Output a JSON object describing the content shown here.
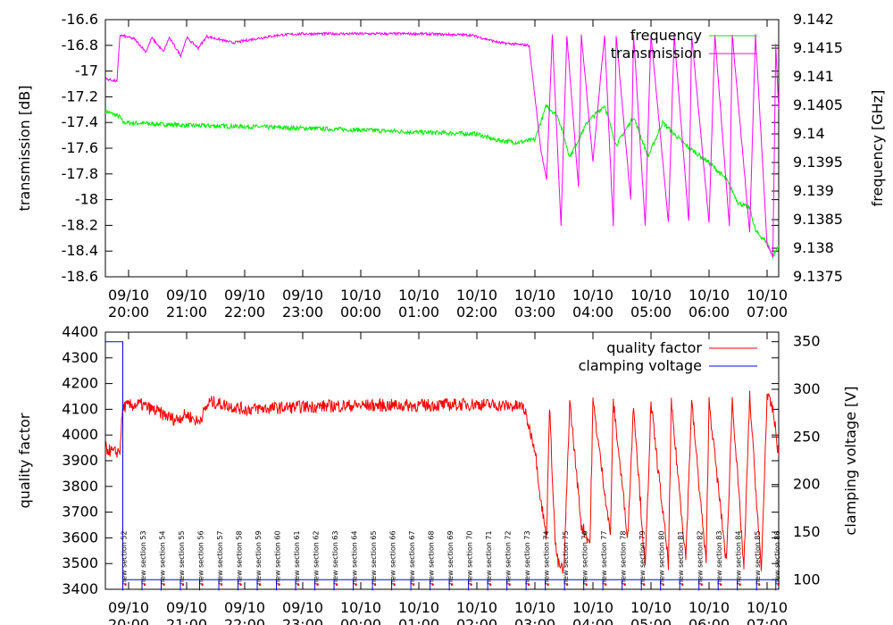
{
  "chart_data": [
    {
      "type": "line",
      "ylabel": "transmission [dB]",
      "y2label": "frequency [GHz]",
      "ylim": [
        -18.6,
        -16.6
      ],
      "y2lim": [
        9.1375,
        9.142
      ],
      "y_ticks": [
        "-16.6",
        "-16.8",
        "-17",
        "-17.2",
        "-17.4",
        "-17.6",
        "-17.8",
        "-18",
        "-18.2",
        "-18.4",
        "-18.6"
      ],
      "y2_ticks": [
        "9.142",
        "9.1415",
        "9.141",
        "9.1405",
        "9.14",
        "9.1395",
        "9.139",
        "9.1385",
        "9.138",
        "9.1375"
      ],
      "x_ticks": [
        {
          "date": "09/10",
          "time": "20:00"
        },
        {
          "date": "09/10",
          "time": "21:00"
        },
        {
          "date": "09/10",
          "time": "22:00"
        },
        {
          "date": "09/10",
          "time": "23:00"
        },
        {
          "date": "10/10",
          "time": "00:00"
        },
        {
          "date": "10/10",
          "time": "01:00"
        },
        {
          "date": "10/10",
          "time": "02:00"
        },
        {
          "date": "10/10",
          "time": "03:00"
        },
        {
          "date": "10/10",
          "time": "04:00"
        },
        {
          "date": "10/10",
          "time": "05:00"
        },
        {
          "date": "10/10",
          "time": "06:00"
        },
        {
          "date": "10/10",
          "time": "07:00"
        }
      ],
      "x_hours_since_2000": [
        19.6,
        20.0,
        21.0,
        22.0,
        23.0,
        24.0,
        25.0,
        26.0,
        27.0,
        28.0,
        29.0,
        30.0,
        31.0,
        31.2
      ],
      "legend_position": "top-right",
      "series": [
        {
          "name": "frequency",
          "color": "#00ee00",
          "axis": "right",
          "points": [
            [
              19.6,
              9.1404
            ],
            [
              19.85,
              9.1403
            ],
            [
              19.9,
              9.1402
            ],
            [
              21.0,
              9.14015
            ],
            [
              22.0,
              9.14013
            ],
            [
              23.0,
              9.1401
            ],
            [
              24.0,
              9.14007
            ],
            [
              25.0,
              9.14003
            ],
            [
              26.0,
              9.14
            ],
            [
              26.3,
              9.1399
            ],
            [
              26.7,
              9.13985
            ],
            [
              27.0,
              9.1399
            ],
            [
              27.2,
              9.1405
            ],
            [
              27.4,
              9.1403
            ],
            [
              27.6,
              9.1396
            ],
            [
              27.9,
              9.1402
            ],
            [
              28.2,
              9.1405
            ],
            [
              28.4,
              9.1398
            ],
            [
              28.7,
              9.1403
            ],
            [
              28.95,
              9.1396
            ],
            [
              29.2,
              9.1402
            ],
            [
              29.4,
              9.14
            ],
            [
              29.6,
              9.1398
            ],
            [
              30.0,
              9.1395
            ],
            [
              30.3,
              9.1392
            ],
            [
              30.5,
              9.1388
            ],
            [
              30.7,
              9.1387
            ],
            [
              30.8,
              9.1383
            ],
            [
              31.0,
              9.1381
            ],
            [
              31.1,
              9.13785
            ],
            [
              31.2,
              9.13805
            ]
          ]
        },
        {
          "name": "transmission",
          "color": "#ff00ff",
          "axis": "left",
          "points": [
            [
              19.6,
              -17.06
            ],
            [
              19.8,
              -17.08
            ],
            [
              19.85,
              -16.72
            ],
            [
              20.1,
              -16.75
            ],
            [
              20.3,
              -16.85
            ],
            [
              20.4,
              -16.74
            ],
            [
              20.6,
              -16.85
            ],
            [
              20.7,
              -16.74
            ],
            [
              20.9,
              -16.88
            ],
            [
              21.0,
              -16.74
            ],
            [
              21.2,
              -16.82
            ],
            [
              21.35,
              -16.73
            ],
            [
              21.8,
              -16.78
            ],
            [
              22.3,
              -16.74
            ],
            [
              22.6,
              -16.72
            ],
            [
              23.0,
              -16.71
            ],
            [
              24.0,
              -16.71
            ],
            [
              25.0,
              -16.71
            ],
            [
              25.9,
              -16.72
            ],
            [
              26.4,
              -16.78
            ],
            [
              26.9,
              -16.8
            ],
            [
              27.0,
              -17.2
            ],
            [
              27.1,
              -17.6
            ],
            [
              27.2,
              -17.85
            ],
            [
              27.3,
              -16.72
            ],
            [
              27.45,
              -18.2
            ],
            [
              27.55,
              -16.72
            ],
            [
              27.75,
              -17.9
            ],
            [
              27.8,
              -16.72
            ],
            [
              28.0,
              -17.7
            ],
            [
              28.2,
              -16.72
            ],
            [
              28.35,
              -18.2
            ],
            [
              28.4,
              -16.72
            ],
            [
              28.65,
              -18.0
            ],
            [
              28.7,
              -16.72
            ],
            [
              28.9,
              -18.2
            ],
            [
              29.0,
              -16.72
            ],
            [
              29.3,
              -18.18
            ],
            [
              29.4,
              -16.72
            ],
            [
              29.65,
              -18.17
            ],
            [
              29.7,
              -16.72
            ],
            [
              30.0,
              -18.18
            ],
            [
              30.1,
              -16.72
            ],
            [
              30.35,
              -18.2
            ],
            [
              30.4,
              -16.72
            ],
            [
              30.7,
              -18.25
            ],
            [
              30.8,
              -16.72
            ],
            [
              31.0,
              -18.35
            ],
            [
              31.1,
              -18.45
            ],
            [
              31.15,
              -16.8
            ],
            [
              31.2,
              -17.3
            ]
          ]
        }
      ]
    },
    {
      "type": "line",
      "ylabel": "quality factor",
      "y2label": "clamping voltage [V]",
      "ylim": [
        3400,
        4400
      ],
      "y2lim": [
        90,
        360
      ],
      "y_ticks": [
        "4400",
        "4300",
        "4200",
        "4100",
        "4000",
        "3900",
        "3800",
        "3700",
        "3600",
        "3500",
        "3400"
      ],
      "y2_ticks": [
        "350",
        "300",
        "250",
        "200",
        "150",
        "100"
      ],
      "x_ticks": [
        {
          "date": "09/10",
          "time": "20:00"
        },
        {
          "date": "09/10",
          "time": "21:00"
        },
        {
          "date": "09/10",
          "time": "22:00"
        },
        {
          "date": "09/10",
          "time": "23:00"
        },
        {
          "date": "10/10",
          "time": "00:00"
        },
        {
          "date": "10/10",
          "time": "01:00"
        },
        {
          "date": "10/10",
          "time": "02:00"
        },
        {
          "date": "10/10",
          "time": "03:00"
        },
        {
          "date": "10/10",
          "time": "04:00"
        },
        {
          "date": "10/10",
          "time": "05:00"
        },
        {
          "date": "10/10",
          "time": "06:00"
        },
        {
          "date": "10/10",
          "time": "07:00"
        }
      ],
      "legend_position": "top-right",
      "section_labels": [
        "new section 52",
        "new section 53",
        "new section 54",
        "new section 55",
        "new section 56",
        "new section 57",
        "new section 58",
        "new section 59",
        "new section 60",
        "new section 61",
        "new section 62",
        "new section 63",
        "new section 64",
        "new section 65",
        "new section 66",
        "new section 67",
        "new section 68",
        "new section 69",
        "new section 70",
        "new section 71",
        "new section 72",
        "new section 73",
        "new section 74",
        "new section 75",
        "new section 76",
        "new section 77",
        "new section 78",
        "new section 79",
        "new section 80",
        "new section 81",
        "new section 82",
        "new section 83",
        "new section 84",
        "new section 85",
        "new section 86"
      ],
      "series": [
        {
          "name": "quality factor",
          "color": "#ff0000",
          "axis": "left",
          "points": [
            [
              19.6,
              3950
            ],
            [
              19.75,
              3930
            ],
            [
              19.85,
              3940
            ],
            [
              19.9,
              4110
            ],
            [
              20.2,
              4120
            ],
            [
              20.5,
              4090
            ],
            [
              20.8,
              4060
            ],
            [
              21.0,
              4080
            ],
            [
              21.2,
              4050
            ],
            [
              21.4,
              4130
            ],
            [
              22.0,
              4100
            ],
            [
              23.0,
              4110
            ],
            [
              24.0,
              4115
            ],
            [
              25.0,
              4115
            ],
            [
              26.0,
              4120
            ],
            [
              26.8,
              4110
            ],
            [
              27.0,
              3950
            ],
            [
              27.1,
              3750
            ],
            [
              27.2,
              3600
            ],
            [
              27.25,
              4120
            ],
            [
              27.35,
              3580
            ],
            [
              27.4,
              3500
            ],
            [
              27.5,
              3470
            ],
            [
              27.6,
              4130
            ],
            [
              27.8,
              3650
            ],
            [
              27.95,
              3580
            ],
            [
              28.0,
              4130
            ],
            [
              28.3,
              3610
            ],
            [
              28.35,
              4130
            ],
            [
              28.6,
              3600
            ],
            [
              28.7,
              4120
            ],
            [
              28.9,
              3480
            ],
            [
              29.0,
              4120
            ],
            [
              29.3,
              3500
            ],
            [
              29.35,
              4120
            ],
            [
              29.6,
              3520
            ],
            [
              29.7,
              4130
            ],
            [
              29.95,
              3500
            ],
            [
              30.0,
              4130
            ],
            [
              30.3,
              3500
            ],
            [
              30.4,
              4140
            ],
            [
              30.6,
              3480
            ],
            [
              30.7,
              4150
            ],
            [
              30.9,
              3470
            ],
            [
              31.0,
              4150
            ],
            [
              31.1,
              4100
            ],
            [
              31.2,
              3920
            ]
          ]
        },
        {
          "name": "clamping voltage",
          "color": "#0000ff",
          "axis": "right",
          "points_note": "stepped; idle level 100 V, pulses 95 V",
          "points": [
            [
              19.6,
              350
            ],
            [
              19.9,
              350
            ],
            [
              19.9,
              100
            ],
            [
              31.2,
              100
            ]
          ]
        }
      ]
    }
  ]
}
